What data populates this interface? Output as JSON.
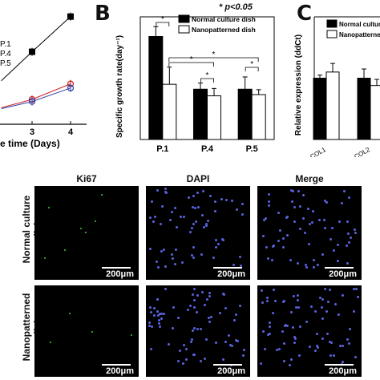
{
  "significance_note": "* p<0.05",
  "chart_data": [
    {
      "panel": "",
      "type": "line",
      "xlabel": "e time (Days)",
      "x_ticks": [
        3,
        4
      ],
      "legend": [
        "P.1",
        "P.4",
        "P.5"
      ],
      "series": [
        {
          "name": "P.1",
          "x": [
            2.2,
            3,
            4
          ],
          "y": [
            2.1,
            3.5,
            5.2
          ],
          "color": "#000000"
        },
        {
          "name": "P.4",
          "x": [
            2.2,
            3,
            4
          ],
          "y": [
            0.8,
            1.2,
            1.95
          ],
          "color": "#cc2222"
        },
        {
          "name": "P.5",
          "x": [
            2.2,
            3,
            4
          ],
          "y": [
            0.75,
            1.1,
            1.75
          ],
          "color": "#3344aa"
        }
      ]
    },
    {
      "panel": "B",
      "type": "bar",
      "ylabel": "Specific growth rate(day⁻¹)",
      "categories": [
        "P.1",
        "P.4",
        "P.5"
      ],
      "series": [
        {
          "name": "Normal culture dish",
          "values": [
            0.42,
            0.205,
            0.205
          ],
          "errors": [
            0.04,
            0.025,
            0.05
          ],
          "color": "#000000"
        },
        {
          "name": "Nanopatterned dish",
          "values": [
            0.225,
            0.178,
            0.183
          ],
          "errors": [
            0.07,
            0.03,
            0.02
          ],
          "color": "#ffffff"
        }
      ],
      "ylim": [
        0,
        0.5
      ],
      "sig_marker": "*"
    },
    {
      "panel": "C",
      "type": "bar",
      "ylabel": "Relative expression (ddCt)",
      "categories": [
        "COL1",
        "COL2"
      ],
      "series": [
        {
          "name": "Normal culture",
          "values": [
            1.0,
            1.0
          ],
          "errors": [
            0.05,
            0.15
          ],
          "color": "#000000"
        },
        {
          "name": "Nanopatterned",
          "values": [
            1.1,
            0.88
          ],
          "errors": [
            0.14,
            0.1
          ],
          "color": "#ffffff"
        }
      ],
      "ylim": [
        0,
        2.0
      ]
    }
  ],
  "microscopy": {
    "columns": [
      "Ki67",
      "DAPI",
      "Merge"
    ],
    "rows": [
      "Normal culture dish",
      "Nanopatterned dish"
    ],
    "scale_label": "200μm"
  }
}
